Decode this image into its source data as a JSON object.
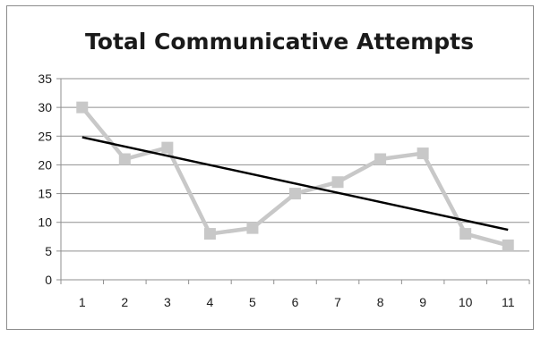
{
  "chart_data": {
    "type": "line",
    "title": "Total Communicative Attempts",
    "xlabel": "",
    "ylabel": "",
    "categories": [
      "1",
      "2",
      "3",
      "4",
      "5",
      "6",
      "7",
      "8",
      "9",
      "10",
      "11"
    ],
    "series": [
      {
        "values": [
          30,
          21,
          23,
          8,
          9,
          15,
          17,
          21,
          22,
          8,
          6
        ],
        "color": "#c8c8c8",
        "marker": "square"
      }
    ],
    "trendline": {
      "type": "linear",
      "start": 24.8,
      "end": 8.7,
      "color": "#000000"
    },
    "ylim": [
      0,
      35
    ],
    "yticks": [
      "0",
      "5",
      "10",
      "15",
      "20",
      "25",
      "30",
      "35"
    ],
    "grid": true,
    "legend": "none"
  }
}
